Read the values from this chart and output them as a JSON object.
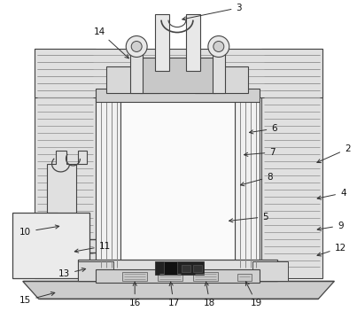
{
  "fig_width": 4.03,
  "fig_height": 3.51,
  "dpi": 100,
  "background_color": "#ffffff",
  "lc": "#444444",
  "hatch_fc": "#e8e8e8",
  "insulation_hatch": "---",
  "inner_fc": "#f5f5f5",
  "gray_fc": "#d8d8d8",
  "dark_fc": "#aaaaaa"
}
